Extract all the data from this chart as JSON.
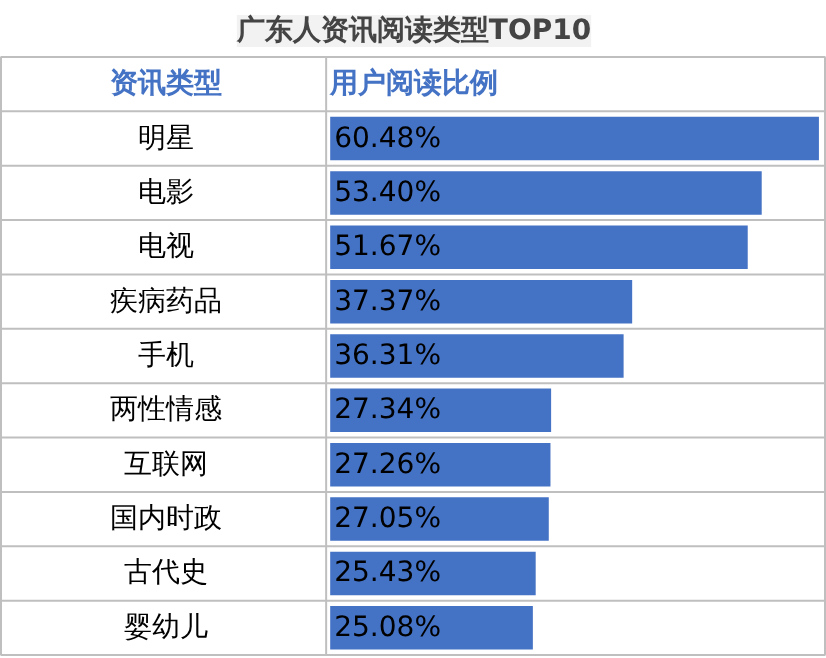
{
  "chart_data": {
    "type": "bar",
    "orientation": "horizontal",
    "title": "广东人资讯阅读类型TOP10",
    "ylabel": "资讯类型",
    "xlabel": "用户阅读比例",
    "categories": [
      "明星",
      "电影",
      "电视",
      "疾病药品",
      "手机",
      "两性情感",
      "互联网",
      "国内时政",
      "古代史",
      "婴幼儿"
    ],
    "values": [
      60.48,
      53.4,
      51.67,
      37.37,
      36.31,
      27.34,
      27.26,
      27.05,
      25.43,
      25.08
    ],
    "color": "#4472c4",
    "value_labels": [
      "60.48%",
      "53.40%",
      "51.67%",
      "37.37%",
      "36.31%",
      "27.34%",
      "27.26%",
      "27.05%",
      "25.43%",
      "25.08%"
    ]
  }
}
